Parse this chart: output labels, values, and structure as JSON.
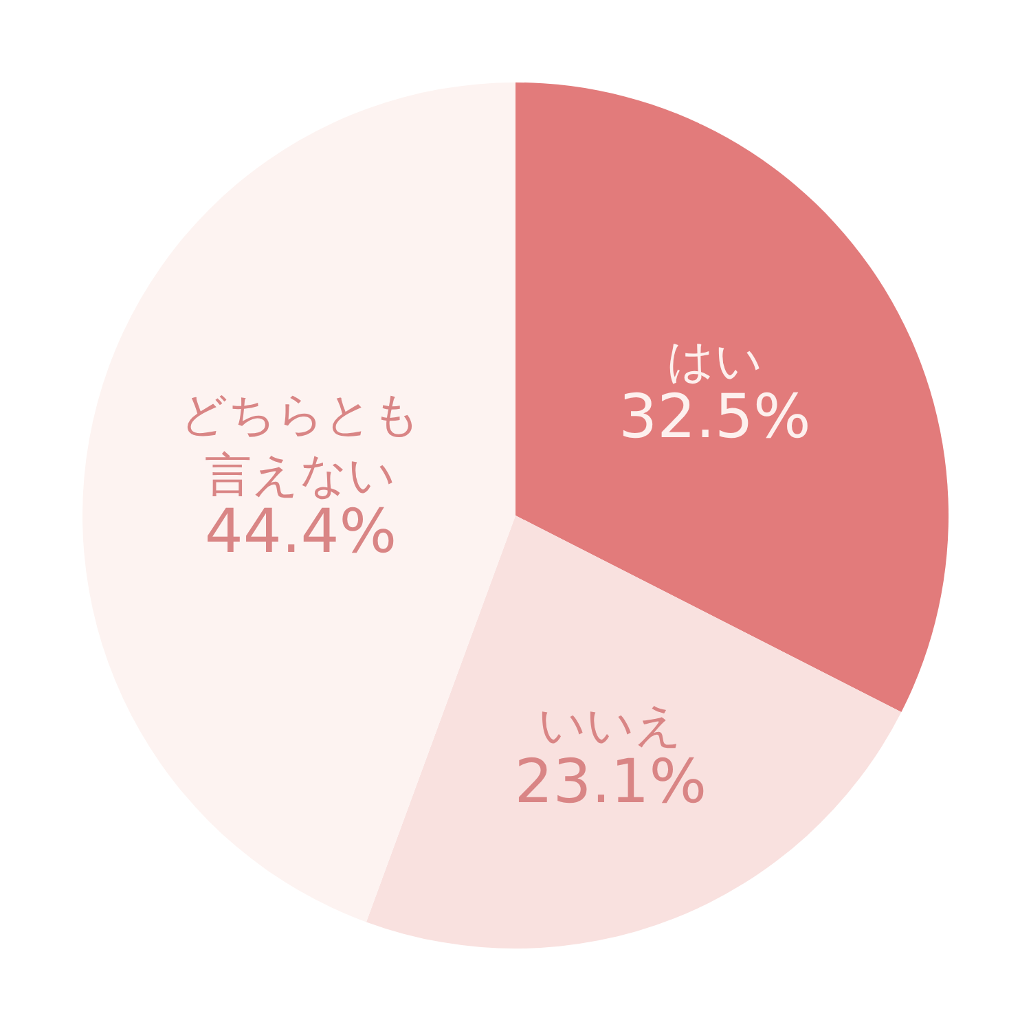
{
  "chart_data": {
    "type": "pie",
    "categories": [
      "はい",
      "いいえ",
      "どちらとも言えない"
    ],
    "values": [
      32.5,
      23.1,
      44.4
    ],
    "colors": [
      "#e27b7b",
      "#f9e1df",
      "#fdf3f1"
    ],
    "value_labels": [
      "32.5%",
      "23.1%",
      "44.4%"
    ],
    "legend": false
  }
}
